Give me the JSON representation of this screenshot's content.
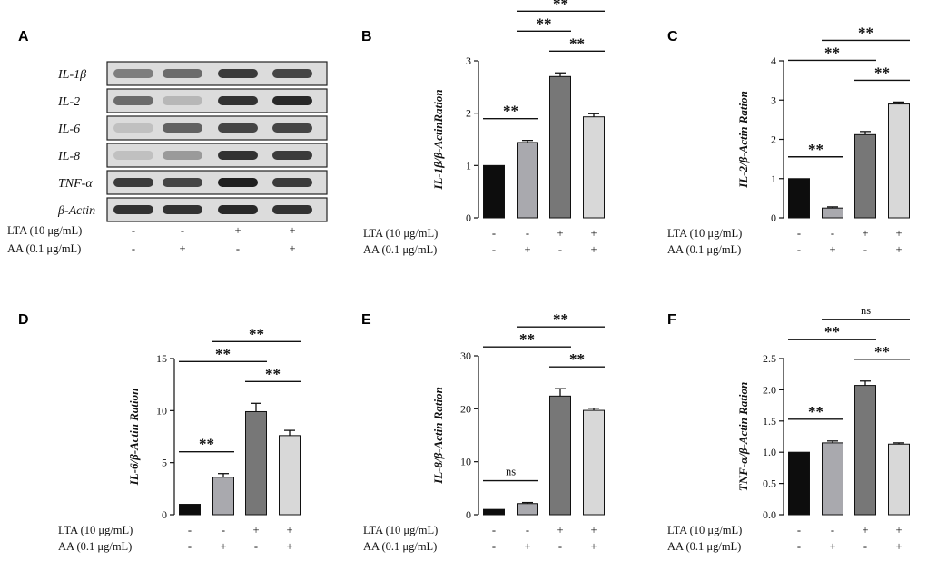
{
  "figure": {
    "conditions": [
      {
        "label": "LTA (10 μg/mL)",
        "signs": [
          "-",
          "-",
          "+",
          "+"
        ]
      },
      {
        "label": "AA (0.1 μg/mL)",
        "signs": [
          "-",
          "+",
          "-",
          "+"
        ]
      }
    ],
    "bar_colors": [
      "#0d0d0d",
      "#a9a9ae",
      "#777777",
      "#d8d8d8"
    ]
  },
  "blot": {
    "letter": "A",
    "rows": [
      {
        "label": "IL-1β",
        "intensity": [
          0.45,
          0.55,
          0.8,
          0.75
        ]
      },
      {
        "label": "IL-2",
        "intensity": [
          0.55,
          0.15,
          0.85,
          0.9
        ]
      },
      {
        "label": "IL-6",
        "intensity": [
          0.1,
          0.6,
          0.75,
          0.75
        ]
      },
      {
        "label": "IL-8",
        "intensity": [
          0.1,
          0.3,
          0.85,
          0.8
        ]
      },
      {
        "label": "TNF-α",
        "intensity": [
          0.8,
          0.75,
          0.95,
          0.8
        ]
      },
      {
        "label": "β-Actin",
        "intensity": [
          0.85,
          0.85,
          0.9,
          0.85
        ]
      }
    ]
  },
  "chart_data": [
    {
      "letter": "B",
      "type": "bar",
      "ylabel": "IL-1β/β-ActinRation",
      "ylim": [
        0,
        3
      ],
      "yticks": [
        "0",
        "1",
        "2",
        "3"
      ],
      "yticks_values": [
        0,
        1,
        2,
        3
      ],
      "values": [
        1.0,
        1.44,
        2.7,
        1.93
      ],
      "errors": [
        0,
        0.04,
        0.07,
        0.06
      ],
      "comparisons": [
        {
          "from": 0,
          "to": 1,
          "label": "**",
          "level": 1
        },
        {
          "from": 2,
          "to": 3,
          "label": "**",
          "level": 1
        },
        {
          "from": 1,
          "to": 2,
          "label": "**",
          "level": 2
        },
        {
          "from": 1,
          "to": 3,
          "label": "**",
          "level": 3
        }
      ]
    },
    {
      "letter": "C",
      "type": "bar",
      "ylabel": "IL-2/β-Actin Ration",
      "ylim": [
        0,
        4
      ],
      "yticks": [
        "0",
        "1",
        "2",
        "3",
        "4"
      ],
      "yticks_values": [
        0,
        1,
        2,
        3,
        4
      ],
      "values": [
        1.0,
        0.25,
        2.12,
        2.9
      ],
      "errors": [
        0,
        0.03,
        0.08,
        0.05
      ],
      "comparisons": [
        {
          "from": 0,
          "to": 1,
          "label": "**",
          "level": 1
        },
        {
          "from": 2,
          "to": 3,
          "label": "**",
          "level": 1
        },
        {
          "from": 0,
          "to": 2,
          "label": "**",
          "level": 2
        },
        {
          "from": 1,
          "to": 3,
          "label": "**",
          "level": 3
        }
      ]
    },
    {
      "letter": "D",
      "type": "bar",
      "ylabel": "IL-6/β-Actin Ration",
      "ylim": [
        0,
        15
      ],
      "yticks": [
        "0",
        "5",
        "10",
        "15"
      ],
      "yticks_values": [
        0,
        5,
        10,
        15
      ],
      "values": [
        1.0,
        3.6,
        9.9,
        7.6
      ],
      "errors": [
        0,
        0.35,
        0.8,
        0.5
      ],
      "comparisons": [
        {
          "from": 0,
          "to": 1,
          "label": "**",
          "level": 1
        },
        {
          "from": 2,
          "to": 3,
          "label": "**",
          "level": 1
        },
        {
          "from": 0,
          "to": 2,
          "label": "**",
          "level": 2
        },
        {
          "from": 1,
          "to": 3,
          "label": "**",
          "level": 3
        }
      ]
    },
    {
      "letter": "E",
      "type": "bar",
      "ylabel": "IL-8/β-Actin Ration",
      "ylim": [
        0,
        30
      ],
      "yticks": [
        "0",
        "10",
        "20",
        "30"
      ],
      "yticks_values": [
        0,
        10,
        20,
        30
      ],
      "values": [
        1.0,
        2.1,
        22.4,
        19.7
      ],
      "errors": [
        0,
        0.2,
        1.4,
        0.4
      ],
      "comparisons": [
        {
          "from": 0,
          "to": 1,
          "label": "ns",
          "level": 1
        },
        {
          "from": 2,
          "to": 3,
          "label": "**",
          "level": 1
        },
        {
          "from": 0,
          "to": 2,
          "label": "**",
          "level": 2
        },
        {
          "from": 1,
          "to": 3,
          "label": "**",
          "level": 3
        }
      ]
    },
    {
      "letter": "F",
      "type": "bar",
      "ylabel": "TNF-α/β-Actin Ration",
      "ylim": [
        0,
        2.5
      ],
      "yticks": [
        "0.0",
        "0.5",
        "1.0",
        "1.5",
        "2.0",
        "2.5"
      ],
      "yticks_values": [
        0,
        0.5,
        1,
        1.5,
        2,
        2.5
      ],
      "values": [
        1.0,
        1.15,
        2.07,
        1.13
      ],
      "errors": [
        0,
        0.03,
        0.07,
        0.02
      ],
      "comparisons": [
        {
          "from": 0,
          "to": 1,
          "label": "**",
          "level": 1
        },
        {
          "from": 2,
          "to": 3,
          "label": "**",
          "level": 1
        },
        {
          "from": 0,
          "to": 2,
          "label": "**",
          "level": 2
        },
        {
          "from": 1,
          "to": 3,
          "label": "ns",
          "level": 3
        }
      ]
    }
  ]
}
